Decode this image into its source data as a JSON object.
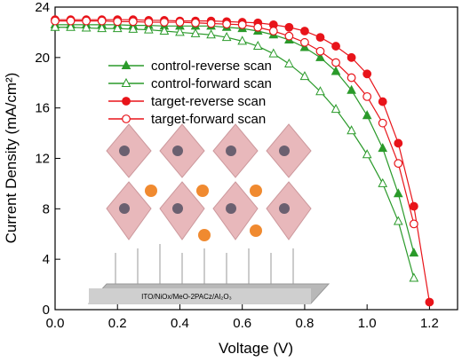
{
  "chart_data": {
    "type": "line",
    "xlabel": "Voltage (V)",
    "ylabel": "Current Density (mA/cm²)",
    "inset_label": "ITO/NiOx/MeO-2PACz/Al₂O₃",
    "xlim": [
      0,
      1.29
    ],
    "ylim": [
      0,
      24
    ],
    "xticks": [
      {
        "value": 0,
        "label": "0.0"
      },
      0.2,
      0.4,
      0.6,
      0.8,
      {
        "value": 1,
        "label": "1.0"
      },
      1.2
    ],
    "yticks": [
      0,
      4,
      8,
      12,
      16,
      20,
      24
    ],
    "legend": "upper-left",
    "x": [
      0,
      0.05,
      0.1,
      0.15,
      0.2,
      0.25,
      0.3,
      0.35,
      0.4,
      0.45,
      0.5,
      0.55,
      0.6,
      0.65,
      0.7,
      0.75,
      0.8,
      0.85,
      0.9,
      0.95,
      1.0,
      1.05,
      1.1,
      1.15,
      1.2
    ],
    "series": [
      {
        "name": "control-reverse scan",
        "color": "#2a9a2a",
        "marker": "triangle",
        "filled": true,
        "values": [
          22.6,
          22.6,
          22.6,
          22.6,
          22.6,
          22.55,
          22.55,
          22.5,
          22.5,
          22.5,
          22.5,
          22.4,
          22.3,
          22.1,
          21.8,
          21.4,
          20.8,
          20.0,
          18.9,
          17.4,
          15.4,
          12.8,
          9.2,
          4.5,
          null
        ]
      },
      {
        "name": "control-forward scan",
        "color": "#2a9a2a",
        "marker": "triangle",
        "filled": false,
        "values": [
          22.4,
          22.4,
          22.35,
          22.3,
          22.3,
          22.25,
          22.2,
          22.1,
          22.0,
          21.9,
          21.8,
          21.6,
          21.3,
          20.9,
          20.3,
          19.5,
          18.5,
          17.3,
          15.9,
          14.2,
          12.3,
          10.0,
          7.0,
          2.5,
          null
        ]
      },
      {
        "name": "target-reverse scan",
        "color": "#e8141a",
        "marker": "circle",
        "filled": true,
        "values": [
          23.0,
          23.0,
          23.0,
          23.0,
          23.0,
          23.0,
          22.95,
          22.95,
          22.9,
          22.9,
          22.9,
          22.85,
          22.8,
          22.75,
          22.6,
          22.4,
          22.1,
          21.6,
          20.9,
          20.0,
          18.7,
          16.5,
          13.2,
          8.2,
          0.6
        ]
      },
      {
        "name": "target-forward scan",
        "color": "#e8141a",
        "marker": "circle",
        "filled": false,
        "values": [
          22.9,
          22.9,
          22.9,
          22.9,
          22.85,
          22.85,
          22.8,
          22.8,
          22.8,
          22.75,
          22.7,
          22.65,
          22.6,
          22.4,
          22.1,
          21.7,
          21.2,
          20.5,
          19.6,
          18.4,
          16.9,
          14.8,
          11.6,
          6.8,
          null
        ]
      }
    ]
  }
}
